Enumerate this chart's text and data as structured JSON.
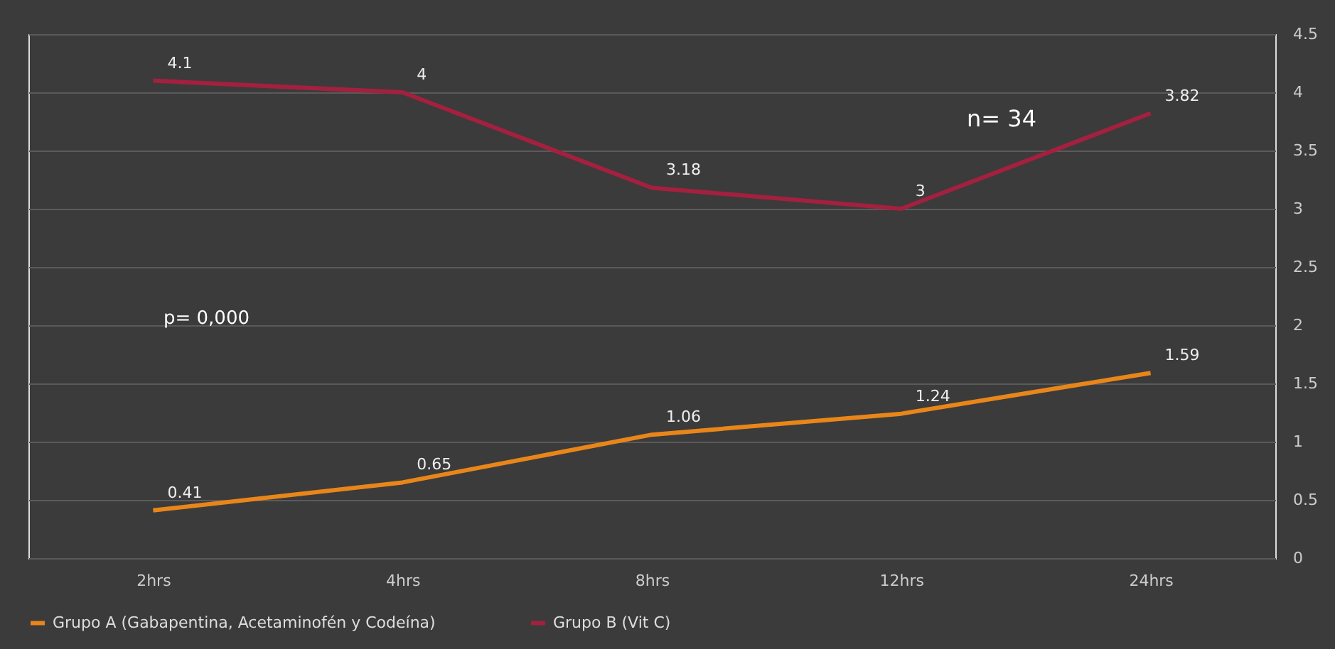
{
  "chart_data": {
    "type": "line",
    "categories": [
      "2hrs",
      "4hrs",
      "8hrs",
      "12hrs",
      "24hrs"
    ],
    "series": [
      {
        "name": "Grupo A (Gabapentina, Acetaminofén y Codeína)",
        "color": "#e8861a",
        "values": [
          0.41,
          0.65,
          1.06,
          1.24,
          1.59
        ]
      },
      {
        "name": "Grupo B (Vit C)",
        "color": "#a3203f",
        "values": [
          4.1,
          4,
          3.18,
          3,
          3.82
        ]
      }
    ],
    "ylim": [
      0,
      4.5
    ],
    "yticks": [
      0,
      0.5,
      1,
      1.5,
      2,
      2.5,
      3,
      3.5,
      4,
      4.5
    ],
    "grid": "y",
    "legend": "bottom",
    "data_labels": true,
    "marker": "none",
    "line_style": "solid",
    "annotations": [
      "p= 0,000",
      "n= 34"
    ]
  }
}
